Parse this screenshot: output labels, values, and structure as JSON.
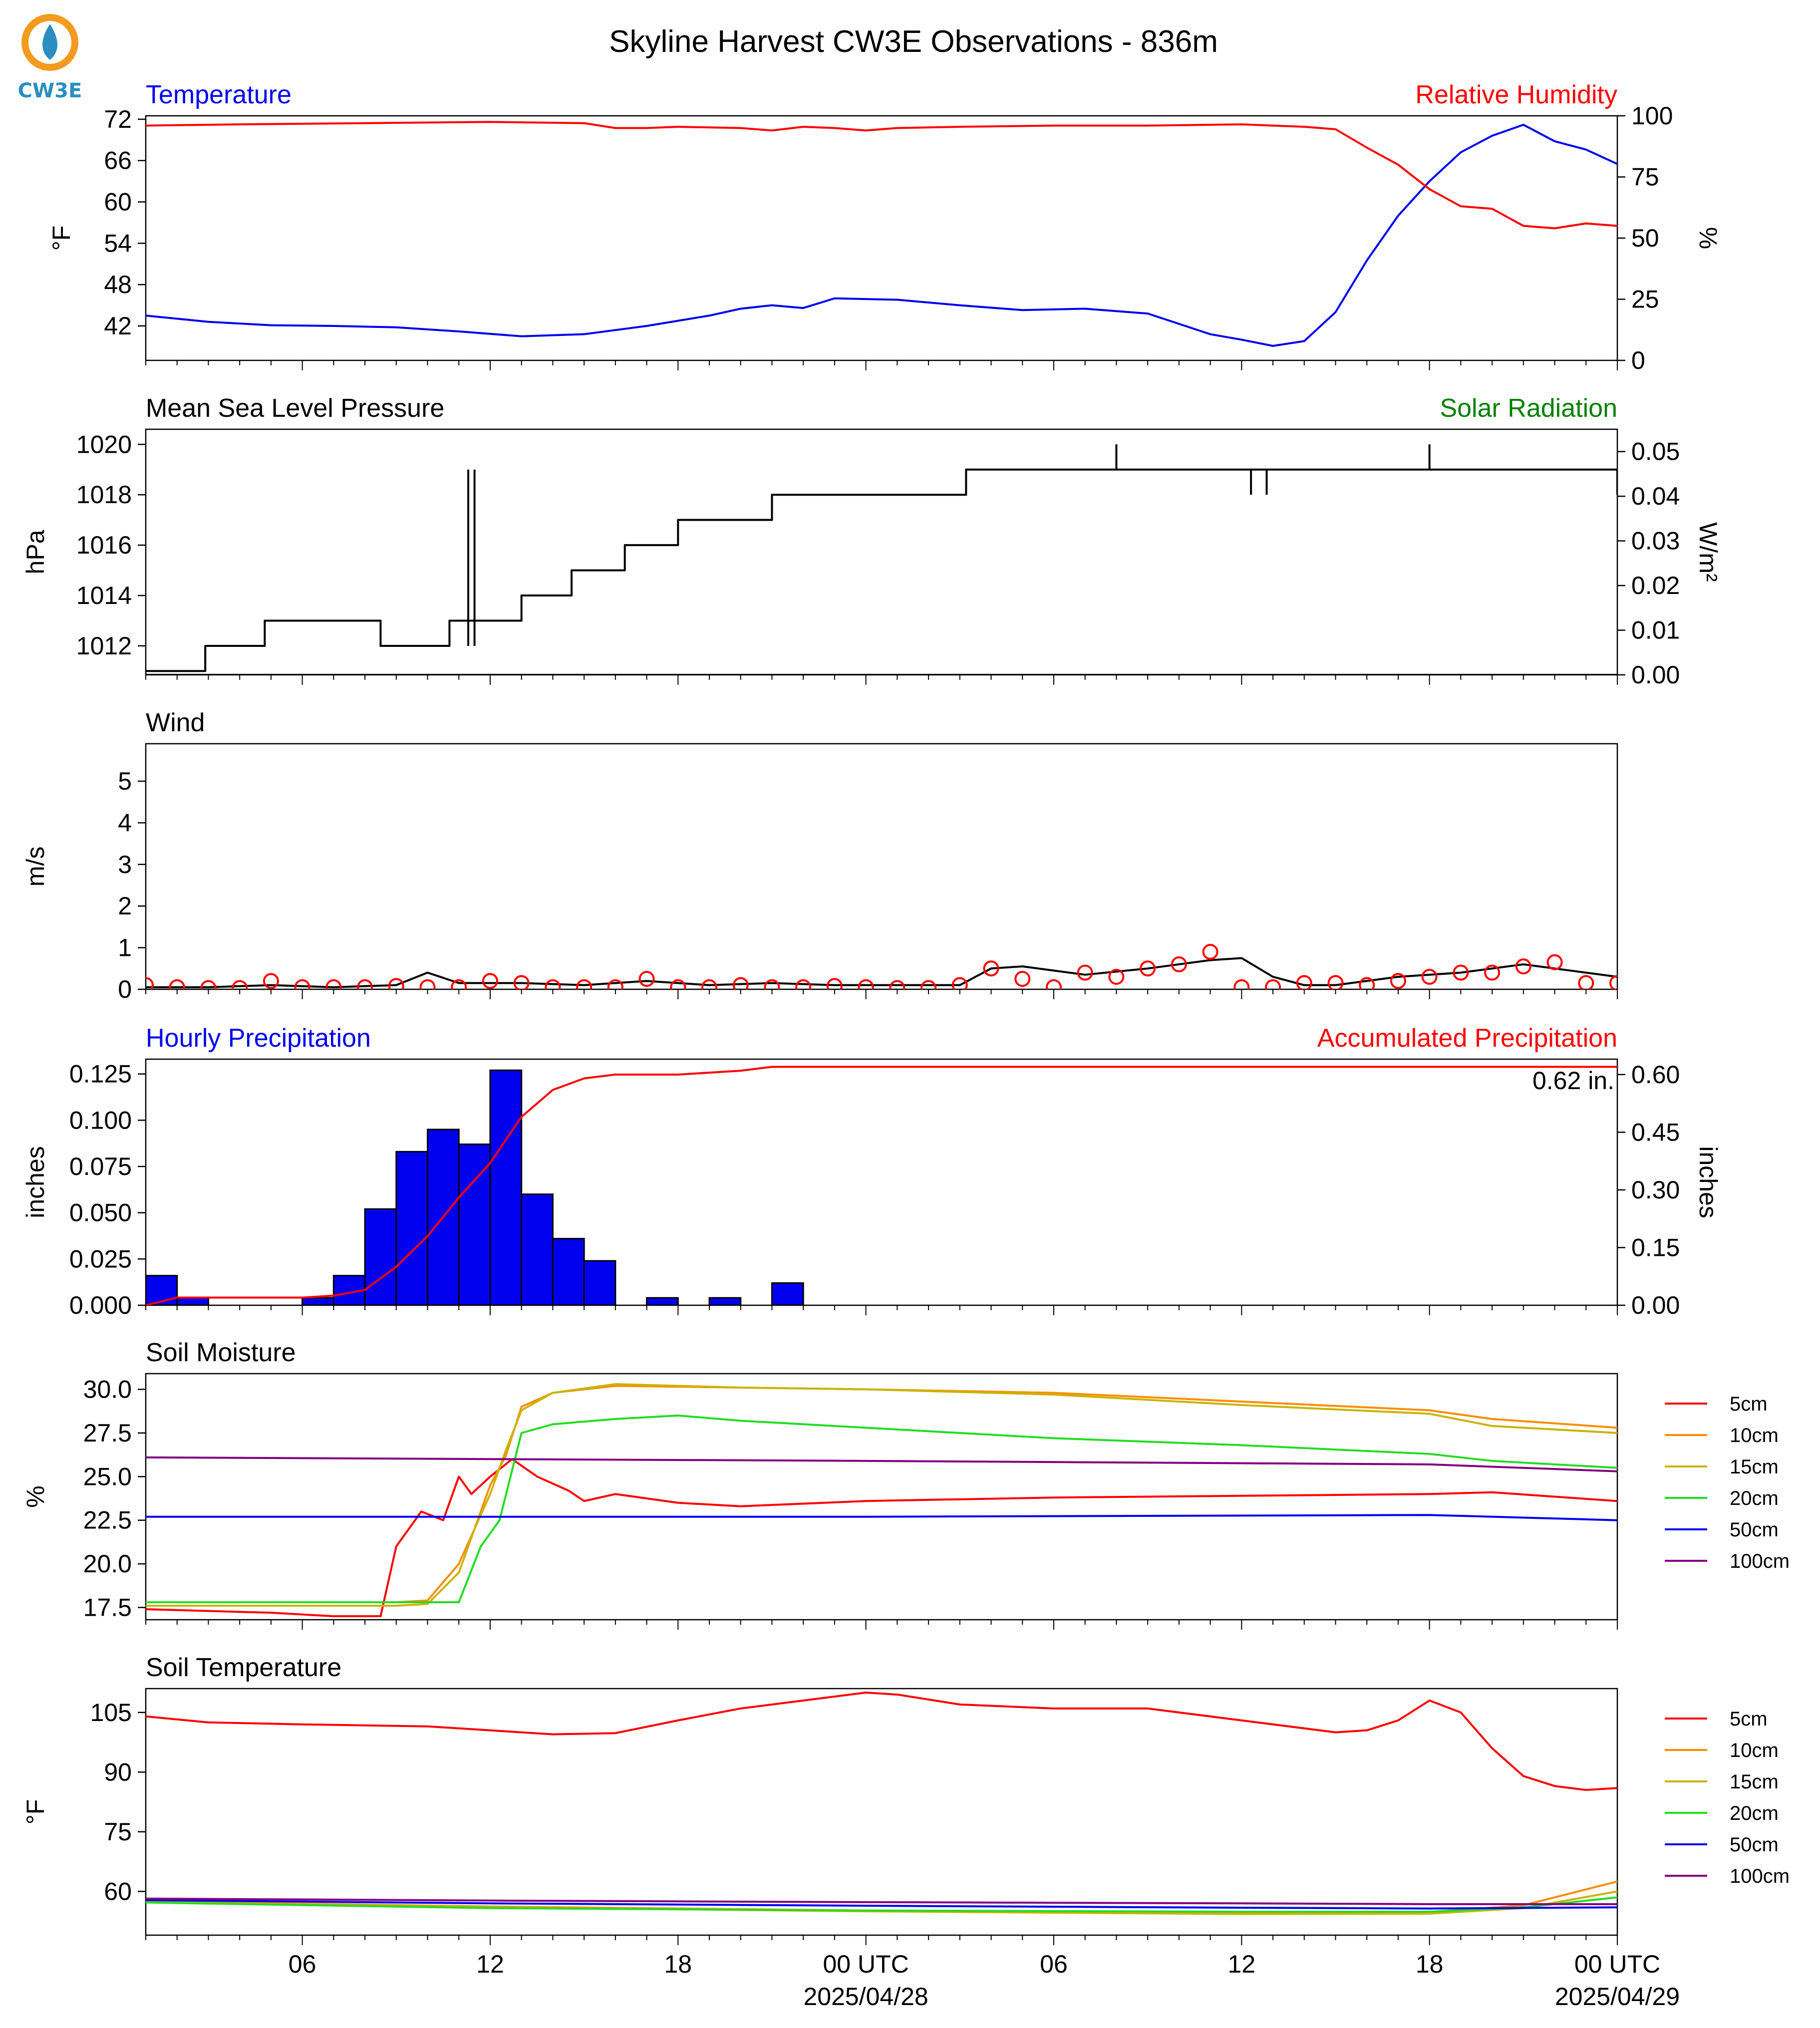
{
  "title": "Skyline Harvest CW3E Observations - 836m",
  "logo": {
    "text": "CW3E",
    "icon": "water-drop-logo-icon",
    "colors": {
      "arc": "#f29b1f",
      "drop": "#2a8fc0"
    }
  },
  "colors": {
    "red": "#ff0000",
    "blue": "#0000ee",
    "black": "#000000",
    "green": "#008000",
    "orange": "#ff8c00",
    "olive": "#c8b400",
    "lime": "#22dd22",
    "purple": "#800080"
  },
  "time_axis": {
    "start_hour": 1,
    "end_hour": 48,
    "tick_labels": [
      {
        "hour": 6,
        "label": "06"
      },
      {
        "hour": 12,
        "label": "12"
      },
      {
        "hour": 18,
        "label": "18"
      },
      {
        "hour": 24,
        "label": "00 UTC",
        "sub": "2025/04/28"
      },
      {
        "hour": 30,
        "label": "06"
      },
      {
        "hour": 36,
        "label": "12"
      },
      {
        "hour": 42,
        "label": "18"
      },
      {
        "hour": 48,
        "label": "00 UTC",
        "sub": "2025/04/29"
      }
    ]
  },
  "panels": {
    "temperature": {
      "left_title": "Temperature",
      "right_title": "Relative Humidity",
      "left_ylabel": "°F",
      "right_ylabel": "%",
      "left_ticks": [
        "42",
        "48",
        "54",
        "60",
        "66",
        "72"
      ],
      "right_ticks": [
        "0",
        "25",
        "50",
        "75",
        "100"
      ]
    },
    "pressure": {
      "left_title": "Mean Sea Level Pressure",
      "right_title": "Solar Radiation",
      "left_ylabel": "hPa",
      "right_ylabel": "W/m²",
      "left_ticks": [
        "1012",
        "1014",
        "1016",
        "1018",
        "1020"
      ],
      "right_ticks": [
        "0.00",
        "0.01",
        "0.02",
        "0.03",
        "0.04",
        "0.05"
      ]
    },
    "wind": {
      "left_title": "Wind",
      "left_ylabel": "m/s",
      "left_ticks": [
        "0",
        "1",
        "2",
        "3",
        "4",
        "5"
      ]
    },
    "precip": {
      "left_title": "Hourly Precipitation",
      "right_title": "Accumulated Precipitation",
      "left_ylabel": "inches",
      "right_ylabel": "inches",
      "left_ticks": [
        "0.000",
        "0.025",
        "0.050",
        "0.075",
        "0.100",
        "0.125"
      ],
      "right_ticks": [
        "0.00",
        "0.15",
        "0.30",
        "0.45",
        "0.60"
      ],
      "total_label": "0.62 in."
    },
    "soil_moisture": {
      "left_title": "Soil Moisture",
      "left_ylabel": "%",
      "left_ticks": [
        "17.5",
        "20.0",
        "22.5",
        "25.0",
        "27.5",
        "30.0"
      ],
      "legend": [
        "5cm",
        "10cm",
        "15cm",
        "20cm",
        "50cm",
        "100cm"
      ]
    },
    "soil_temp": {
      "left_title": "Soil Temperature",
      "left_ylabel": "°F",
      "left_ticks": [
        "60",
        "75",
        "90",
        "105"
      ],
      "legend": [
        "5cm",
        "10cm",
        "15cm",
        "20cm",
        "50cm",
        "100cm"
      ]
    }
  },
  "chart_data": [
    {
      "type": "line",
      "title": "Temperature / Relative Humidity",
      "ylabel": "°F",
      "y2label": "%",
      "ylim": [
        37,
        72.5
      ],
      "y2lim": [
        0,
        100
      ],
      "series": [
        {
          "name": "Temperature",
          "axis": "left",
          "color": "#0000ee",
          "x": [
            1,
            3,
            5,
            7,
            9,
            11,
            13,
            15,
            17,
            19,
            20,
            21,
            22,
            23,
            25,
            27,
            29,
            31,
            33,
            35,
            36,
            37,
            38,
            39,
            40,
            41,
            42,
            43,
            44,
            45,
            46,
            47,
            48
          ],
          "y": [
            43.5,
            42.6,
            42.1,
            42.0,
            41.8,
            41.2,
            40.5,
            40.8,
            42.0,
            43.5,
            44.5,
            45.0,
            44.6,
            46.0,
            45.8,
            45.0,
            44.3,
            44.5,
            43.8,
            40.8,
            40.0,
            39.1,
            39.8,
            44.0,
            51.5,
            58.0,
            63.0,
            67.2,
            69.6,
            71.2,
            68.8,
            67.6,
            65.5
          ]
        },
        {
          "name": "Relative Humidity",
          "axis": "right",
          "color": "#ff0000",
          "x": [
            1,
            4,
            8,
            12,
            15,
            16,
            17,
            18,
            20,
            21,
            22,
            23,
            24,
            25,
            27,
            30,
            33,
            36,
            37,
            38,
            39,
            40,
            41,
            42,
            43,
            44,
            45,
            46,
            47,
            48
          ],
          "y": [
            96,
            96.5,
            97,
            97.5,
            97,
            95,
            95,
            95.5,
            95,
            94,
            95.5,
            95,
            94,
            95,
            95.5,
            96,
            96,
            96.5,
            96,
            95.5,
            94.5,
            87,
            80,
            70,
            63,
            62,
            55,
            54,
            56,
            55
          ]
        }
      ]
    },
    {
      "type": "line",
      "title": "Mean Sea Level Pressure / Solar Radiation",
      "ylabel": "hPa",
      "y2label": "W/m²",
      "ylim": [
        1010.85,
        1020.6
      ],
      "y2lim": [
        0,
        0.055
      ],
      "series": [
        {
          "name": "Mean Sea Level Pressure",
          "axis": "left",
          "color": "#000000",
          "step": true,
          "x": [
            1,
            2.9,
            4.8,
            8.5,
            10.7,
            13,
            14.6,
            16.3,
            18,
            21,
            27.2,
            40,
            41,
            45.7,
            48
          ],
          "y": [
            1011,
            1012,
            1013,
            1012,
            1013,
            1014,
            1015,
            1016,
            1017,
            1018,
            1019,
            1019,
            1019,
            1019,
            1018
          ]
        },
        {
          "name": "Solar Radiation",
          "axis": "right",
          "color": "#000000",
          "step": true,
          "x": [
            1,
            48
          ],
          "y": [
            0,
            0
          ]
        }
      ],
      "spikes": [
        {
          "x": 32,
          "y": 1020
        },
        {
          "x": 42,
          "y": 1020
        },
        {
          "x": 36.3,
          "y": 1018
        },
        {
          "x": 36.8,
          "y": 1018
        },
        {
          "x": 11.3,
          "y": 1012
        },
        {
          "x": 11.5,
          "y": 1012
        }
      ]
    },
    {
      "type": "line",
      "title": "Wind",
      "ylabel": "m/s",
      "ylim": [
        0,
        5.9
      ],
      "series": [
        {
          "name": "Wind speed",
          "color": "#000000",
          "x": [
            1,
            3,
            5,
            7,
            9,
            10,
            11,
            13,
            15,
            17,
            19,
            21,
            23,
            25,
            27,
            28,
            29,
            31,
            33,
            35,
            36,
            37,
            38,
            39,
            41,
            43,
            45,
            46,
            47,
            48
          ],
          "y": [
            0.05,
            0.05,
            0.1,
            0.05,
            0.1,
            0.4,
            0.15,
            0.15,
            0.1,
            0.2,
            0.1,
            0.15,
            0.1,
            0.1,
            0.1,
            0.5,
            0.55,
            0.35,
            0.5,
            0.7,
            0.75,
            0.3,
            0.1,
            0.1,
            0.3,
            0.4,
            0.6,
            0.5,
            0.4,
            0.3
          ]
        },
        {
          "name": "Hourly gust",
          "color": "#ff0000",
          "marker": "circle",
          "x": [
            1,
            2,
            3,
            4,
            5,
            6,
            7,
            8,
            9,
            10,
            11,
            12,
            13,
            14,
            15,
            16,
            17,
            18,
            19,
            20,
            21,
            22,
            23,
            24,
            25,
            26,
            27,
            28,
            29,
            30,
            31,
            32,
            33,
            34,
            35,
            36,
            37,
            38,
            39,
            40,
            41,
            42,
            43,
            44,
            45,
            46,
            47,
            48
          ],
          "y": [
            0.1,
            0.05,
            0.03,
            0.03,
            0.2,
            0.05,
            0.05,
            0.05,
            0.08,
            0.05,
            0.05,
            0.2,
            0.15,
            0.05,
            0.05,
            0.05,
            0.25,
            0.05,
            0.05,
            0.1,
            0.05,
            0.05,
            0.08,
            0.05,
            0.03,
            0.03,
            0.1,
            0.5,
            0.25,
            0.05,
            0.4,
            0.3,
            0.5,
            0.6,
            0.9,
            0.05,
            0.05,
            0.15,
            0.15,
            0.1,
            0.2,
            0.3,
            0.4,
            0.4,
            0.55,
            0.65,
            0.15,
            0.15
          ]
        }
      ]
    },
    {
      "type": "bar",
      "title": "Hourly Precipitation / Accumulated Precipitation",
      "ylabel": "inches",
      "y2label": "inches",
      "ylim": [
        0,
        0.133
      ],
      "y2lim": [
        0,
        0.64
      ],
      "bar_series": {
        "name": "Hourly Precipitation",
        "color": "#0000ee",
        "hour_start": [
          1,
          2,
          3,
          4,
          5,
          6,
          7,
          8,
          9,
          10,
          11,
          12,
          13,
          14,
          15,
          16,
          17,
          18,
          19,
          20,
          21,
          22,
          23
        ],
        "values": [
          0.016,
          0.004,
          0,
          0,
          0,
          0.004,
          0.016,
          0.052,
          0.083,
          0.095,
          0.087,
          0.127,
          0.06,
          0.036,
          0.024,
          0,
          0.004,
          0,
          0.004,
          0,
          0.012,
          0,
          0
        ]
      },
      "series": [
        {
          "name": "Accumulated Precipitation",
          "axis": "right",
          "color": "#ff0000",
          "x": [
            1,
            2,
            3,
            6,
            7,
            8,
            9,
            10,
            11,
            12,
            13,
            14,
            15,
            16,
            17,
            18,
            20,
            21,
            22,
            48
          ],
          "y": [
            0,
            0.02,
            0.02,
            0.02,
            0.025,
            0.04,
            0.1,
            0.18,
            0.28,
            0.37,
            0.49,
            0.56,
            0.59,
            0.6,
            0.6,
            0.6,
            0.61,
            0.62,
            0.62,
            0.62
          ]
        }
      ]
    },
    {
      "type": "line",
      "title": "Soil Moisture",
      "ylabel": "%",
      "ylim": [
        16.8,
        30.9
      ],
      "series": [
        {
          "name": "5cm",
          "color": "#ff0000",
          "x": [
            1,
            3,
            5,
            7,
            8.5,
            9,
            9.8,
            10.5,
            11,
            11.4,
            12,
            12.7,
            13.5,
            14.5,
            15,
            16,
            18,
            20,
            24,
            30,
            36,
            42,
            44,
            48
          ],
          "y": [
            17.4,
            17.3,
            17.2,
            17.0,
            17.0,
            21.0,
            23.0,
            22.5,
            25.0,
            24.0,
            25.0,
            26.0,
            25.0,
            24.2,
            23.6,
            24.0,
            23.5,
            23.3,
            23.6,
            23.8,
            23.9,
            24.0,
            24.1,
            23.6
          ]
        },
        {
          "name": "10cm",
          "color": "#ff8c00",
          "x": [
            1,
            9,
            10,
            11,
            11.5,
            12,
            12.5,
            13,
            14,
            16,
            20,
            24,
            30,
            36,
            42,
            44,
            48
          ],
          "y": [
            17.8,
            17.8,
            17.9,
            20.0,
            22.0,
            24.5,
            26.2,
            29.0,
            29.8,
            30.2,
            30.1,
            30.0,
            29.8,
            29.3,
            28.8,
            28.3,
            27.8
          ]
        },
        {
          "name": "15cm",
          "color": "#c8b400",
          "x": [
            1,
            9,
            10,
            11,
            11.5,
            12,
            12.5,
            13,
            14,
            16,
            20,
            24,
            30,
            36,
            42,
            44,
            48
          ],
          "y": [
            17.6,
            17.6,
            17.7,
            19.5,
            22.0,
            24.0,
            26.5,
            28.8,
            29.8,
            30.3,
            30.1,
            30.0,
            29.7,
            29.1,
            28.6,
            27.9,
            27.5
          ]
        },
        {
          "name": "20cm",
          "color": "#22dd22",
          "x": [
            1,
            10,
            11,
            11.7,
            12.3,
            13,
            14,
            16,
            18,
            20,
            24,
            30,
            36,
            42,
            44,
            48
          ],
          "y": [
            17.8,
            17.8,
            17.8,
            21.0,
            22.5,
            27.5,
            28.0,
            28.3,
            28.5,
            28.2,
            27.8,
            27.2,
            26.8,
            26.3,
            25.9,
            25.5
          ]
        },
        {
          "name": "50cm",
          "color": "#0000ee",
          "x": [
            1,
            24,
            42,
            48
          ],
          "y": [
            22.7,
            22.7,
            22.8,
            22.5
          ]
        },
        {
          "name": "100cm",
          "color": "#800080",
          "x": [
            1,
            24,
            42,
            48
          ],
          "y": [
            26.1,
            25.9,
            25.7,
            25.3
          ]
        }
      ]
    },
    {
      "type": "line",
      "title": "Soil Temperature",
      "ylabel": "°F",
      "ylim": [
        49,
        111
      ],
      "series": [
        {
          "name": "5cm",
          "color": "#ff0000",
          "x": [
            1,
            3,
            6,
            10,
            12,
            14,
            16,
            18,
            20,
            23,
            24,
            25,
            27,
            30,
            33,
            36,
            39,
            40,
            41,
            42,
            43,
            44,
            45,
            46,
            47,
            48
          ],
          "y": [
            104,
            102.5,
            102,
            101.5,
            100.5,
            99.5,
            99.8,
            103,
            106,
            109,
            110,
            109.5,
            107,
            106,
            106,
            103,
            100,
            100.5,
            103,
            108,
            105,
            96,
            89,
            86.5,
            85.5,
            86
          ]
        },
        {
          "name": "10cm",
          "color": "#ff8c00",
          "x": [
            1,
            12,
            24,
            36,
            42,
            45,
            48
          ],
          "y": [
            57.5,
            56.2,
            55.2,
            54.6,
            54.8,
            56.5,
            62.5
          ]
        },
        {
          "name": "15cm",
          "color": "#c8b400",
          "x": [
            1,
            12,
            24,
            36,
            42,
            45,
            48
          ],
          "y": [
            57.3,
            56.0,
            55.0,
            54.3,
            54.4,
            55.8,
            60.0
          ]
        },
        {
          "name": "20cm",
          "color": "#22dd22",
          "x": [
            1,
            12,
            24,
            36,
            42,
            45,
            48
          ],
          "y": [
            57.2,
            55.8,
            55.2,
            54.9,
            54.9,
            56.0,
            58.5
          ]
        },
        {
          "name": "50cm",
          "color": "#0000ee",
          "x": [
            1,
            12,
            24,
            36,
            42,
            48
          ],
          "y": [
            57.8,
            57.0,
            56.4,
            55.9,
            55.7,
            56.0
          ]
        },
        {
          "name": "100cm",
          "color": "#800080",
          "x": [
            1,
            12,
            24,
            36,
            42,
            48
          ],
          "y": [
            58.2,
            57.7,
            57.3,
            57.0,
            56.8,
            56.8
          ]
        }
      ]
    }
  ]
}
